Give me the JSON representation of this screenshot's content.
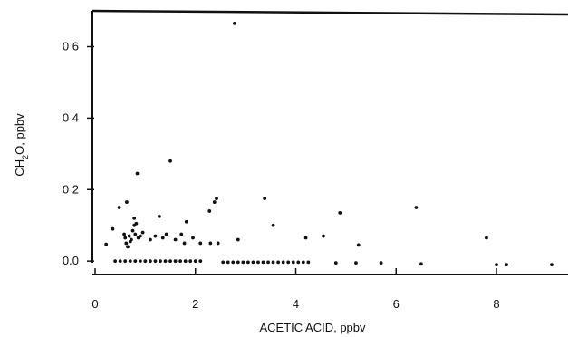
{
  "chart_data": {
    "type": "scatter",
    "title": "",
    "xlabel": "ACETIC ACID, ppbv",
    "ylabel_parts": {
      "pre": "CH",
      "sub": "2",
      "post": "O, ppbv"
    },
    "xlim": [
      0,
      9.3
    ],
    "ylim": [
      -0.03,
      0.69
    ],
    "xticks": [
      {
        "value": 0,
        "label": "0"
      },
      {
        "value": 2,
        "label": "2"
      },
      {
        "value": 4,
        "label": "4"
      },
      {
        "value": 6,
        "label": "6"
      },
      {
        "value": 8,
        "label": "8"
      }
    ],
    "yticks": [
      {
        "value": 0.0,
        "label": "0.0"
      },
      {
        "value": 0.2,
        "label": "0 2"
      },
      {
        "value": 0.4,
        "label": "0 4"
      },
      {
        "value": 0.6,
        "label": "0 6"
      }
    ],
    "grid": false,
    "legend": "none",
    "points": [
      [
        0.22,
        0.047
      ],
      [
        0.35,
        0.09
      ],
      [
        0.48,
        0.15
      ],
      [
        0.63,
        0.165
      ],
      [
        0.58,
        0.075
      ],
      [
        0.6,
        0.065
      ],
      [
        0.62,
        0.05
      ],
      [
        0.65,
        0.04
      ],
      [
        0.68,
        0.07
      ],
      [
        0.7,
        0.055
      ],
      [
        0.72,
        0.06
      ],
      [
        0.75,
        0.085
      ],
      [
        0.78,
        0.1
      ],
      [
        0.78,
        0.12
      ],
      [
        0.8,
        0.075
      ],
      [
        0.82,
        0.105
      ],
      [
        0.84,
        0.245
      ],
      [
        0.86,
        0.065
      ],
      [
        0.9,
        0.07
      ],
      [
        0.95,
        0.08
      ],
      [
        1.1,
        0.06
      ],
      [
        1.2,
        0.07
      ],
      [
        1.28,
        0.125
      ],
      [
        1.35,
        0.065
      ],
      [
        1.42,
        0.075
      ],
      [
        1.5,
        0.28
      ],
      [
        1.6,
        0.06
      ],
      [
        1.72,
        0.075
      ],
      [
        1.78,
        0.05
      ],
      [
        1.82,
        0.11
      ],
      [
        1.95,
        0.065
      ],
      [
        2.1,
        0.05
      ],
      [
        2.28,
        0.14
      ],
      [
        2.3,
        0.05
      ],
      [
        2.38,
        0.165
      ],
      [
        2.42,
        0.175
      ],
      [
        2.45,
        0.05
      ],
      [
        2.78,
        0.665
      ],
      [
        2.85,
        0.06
      ],
      [
        3.38,
        0.175
      ],
      [
        3.55,
        0.1
      ],
      [
        4.2,
        0.065
      ],
      [
        4.55,
        0.07
      ],
      [
        4.88,
        0.135
      ],
      [
        5.25,
        0.045
      ],
      [
        6.4,
        0.15
      ],
      [
        7.8,
        0.065
      ],
      [
        0.4,
        0.0
      ],
      [
        0.5,
        0.0
      ],
      [
        0.6,
        0.0
      ],
      [
        0.7,
        0.0
      ],
      [
        0.8,
        0.0
      ],
      [
        0.9,
        0.0
      ],
      [
        1.0,
        0.0
      ],
      [
        1.1,
        0.0
      ],
      [
        1.2,
        0.0
      ],
      [
        1.3,
        0.0
      ],
      [
        1.4,
        0.0
      ],
      [
        1.5,
        0.0
      ],
      [
        1.6,
        0.0
      ],
      [
        1.7,
        0.0
      ],
      [
        1.8,
        0.0
      ],
      [
        1.9,
        0.0
      ],
      [
        2.0,
        0.0
      ],
      [
        2.1,
        0.0
      ],
      [
        2.55,
        -0.003
      ],
      [
        2.65,
        -0.003
      ],
      [
        2.75,
        -0.003
      ],
      [
        2.85,
        -0.003
      ],
      [
        2.95,
        -0.003
      ],
      [
        3.05,
        -0.003
      ],
      [
        3.15,
        -0.003
      ],
      [
        3.25,
        -0.003
      ],
      [
        3.35,
        -0.003
      ],
      [
        3.45,
        -0.003
      ],
      [
        3.55,
        -0.003
      ],
      [
        3.65,
        -0.003
      ],
      [
        3.75,
        -0.003
      ],
      [
        3.85,
        -0.003
      ],
      [
        3.95,
        -0.003
      ],
      [
        4.05,
        -0.003
      ],
      [
        4.15,
        -0.003
      ],
      [
        4.25,
        -0.003
      ],
      [
        4.8,
        -0.005
      ],
      [
        5.2,
        -0.005
      ],
      [
        5.7,
        -0.005
      ],
      [
        6.5,
        -0.008
      ],
      [
        8.0,
        -0.01
      ],
      [
        8.2,
        -0.01
      ],
      [
        9.1,
        -0.01
      ]
    ]
  }
}
